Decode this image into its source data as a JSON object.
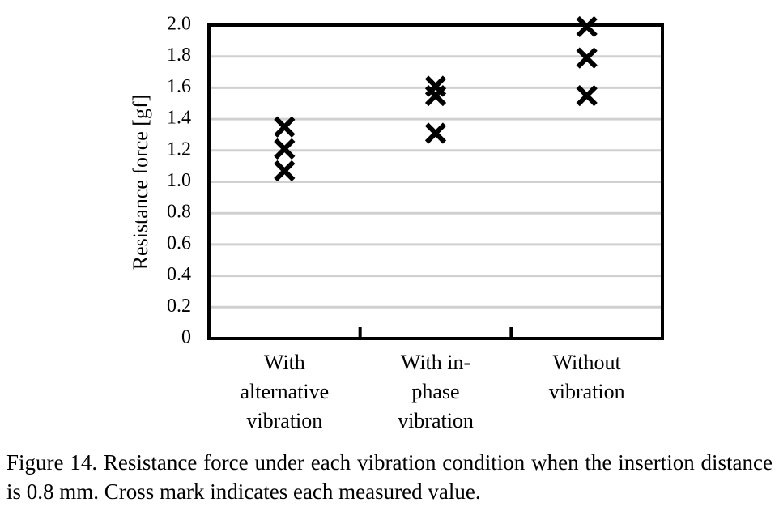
{
  "chart_data": {
    "type": "scatter",
    "y_label": "Resistance force [gf]",
    "categories": [
      "With alternative vibration",
      "With in-phase vibration",
      "Without vibration"
    ],
    "values": [
      [
        1.35,
        1.21,
        1.07
      ],
      [
        1.61,
        1.55,
        1.31
      ],
      [
        1.99,
        1.79,
        1.55
      ]
    ],
    "color": "#000000",
    "ylim": [
      0,
      2
    ],
    "yticks": [
      0,
      0.2,
      0.4,
      0.6,
      0.8,
      {
        "value": 1,
        "label": "1.0"
      },
      1.2,
      1.4,
      1.6,
      1.8,
      {
        "value": 2,
        "label": "2.0"
      }
    ],
    "grid": true
  },
  "caption": "Figure 14. Resistance force under each vibration condition when the insertion distance is 0.8 mm. Cross mark indicates each measured value."
}
